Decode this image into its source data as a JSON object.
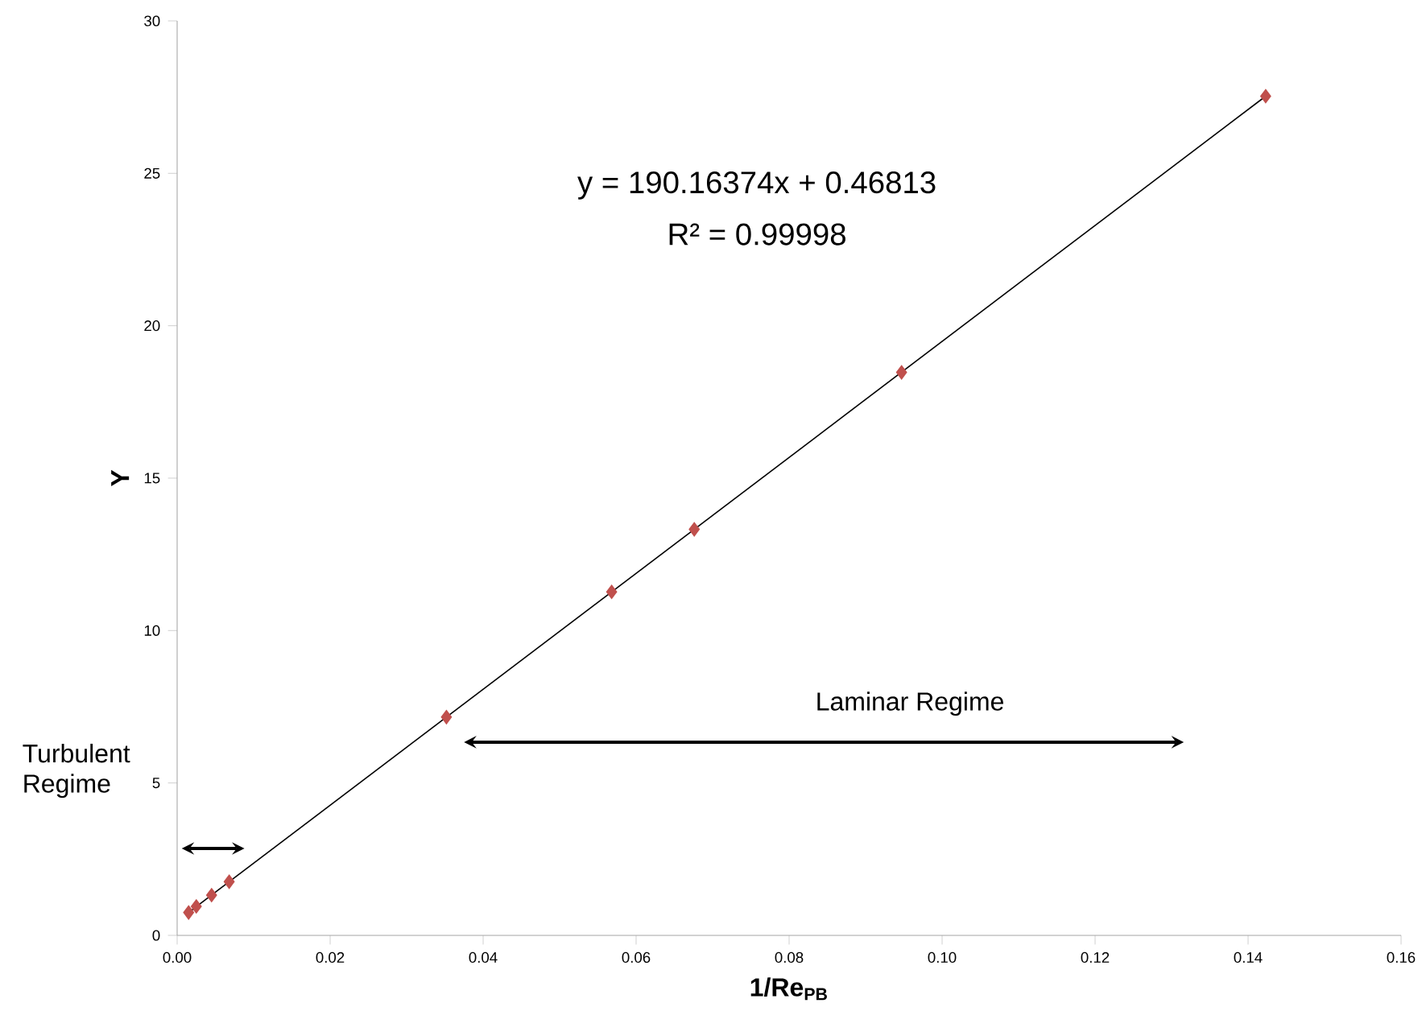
{
  "chart_data": {
    "type": "scatter",
    "xlabel": "1/Re$_{PB}$",
    "ylabel": "Y",
    "series": [
      {
        "color": "#c0504d",
        "marker": "diamond",
        "x": [
          0.0015,
          0.0025,
          0.0045,
          0.0068,
          0.0352,
          0.0568,
          0.0676,
          0.0947,
          0.1423
        ],
        "values": [
          0.75,
          0.95,
          1.32,
          1.76,
          7.16,
          11.27,
          13.32,
          18.47,
          27.53
        ]
      },
      {
        "type": "line",
        "color": "#000000",
        "marker": "none",
        "x": [
          0.0015,
          0.1423
        ],
        "values": [
          0.75,
          27.53
        ]
      }
    ],
    "xlim": [
      0,
      0.16
    ],
    "ylim": [
      0,
      30
    ],
    "xticks": [
      {
        "value": 0,
        "label": "0.00"
      },
      {
        "value": 0.02,
        "label": "0.02"
      },
      {
        "value": 0.04,
        "label": "0.04"
      },
      {
        "value": 0.06,
        "label": "0.06"
      },
      {
        "value": 0.08,
        "label": "0.08"
      },
      {
        "value": 0.1,
        "label": "0.10"
      },
      {
        "value": 0.12,
        "label": "0.12"
      },
      {
        "value": 0.14,
        "label": "0.14"
      },
      {
        "value": 0.16,
        "label": "0.16"
      }
    ],
    "yticks": [
      0,
      5,
      10,
      15,
      20,
      25,
      30
    ],
    "grid": false,
    "annotations": [
      "y = 190.16374x + 0.46813",
      "R² = 0.99998",
      "Turbulent Regime",
      "Laminar Regime"
    ]
  }
}
